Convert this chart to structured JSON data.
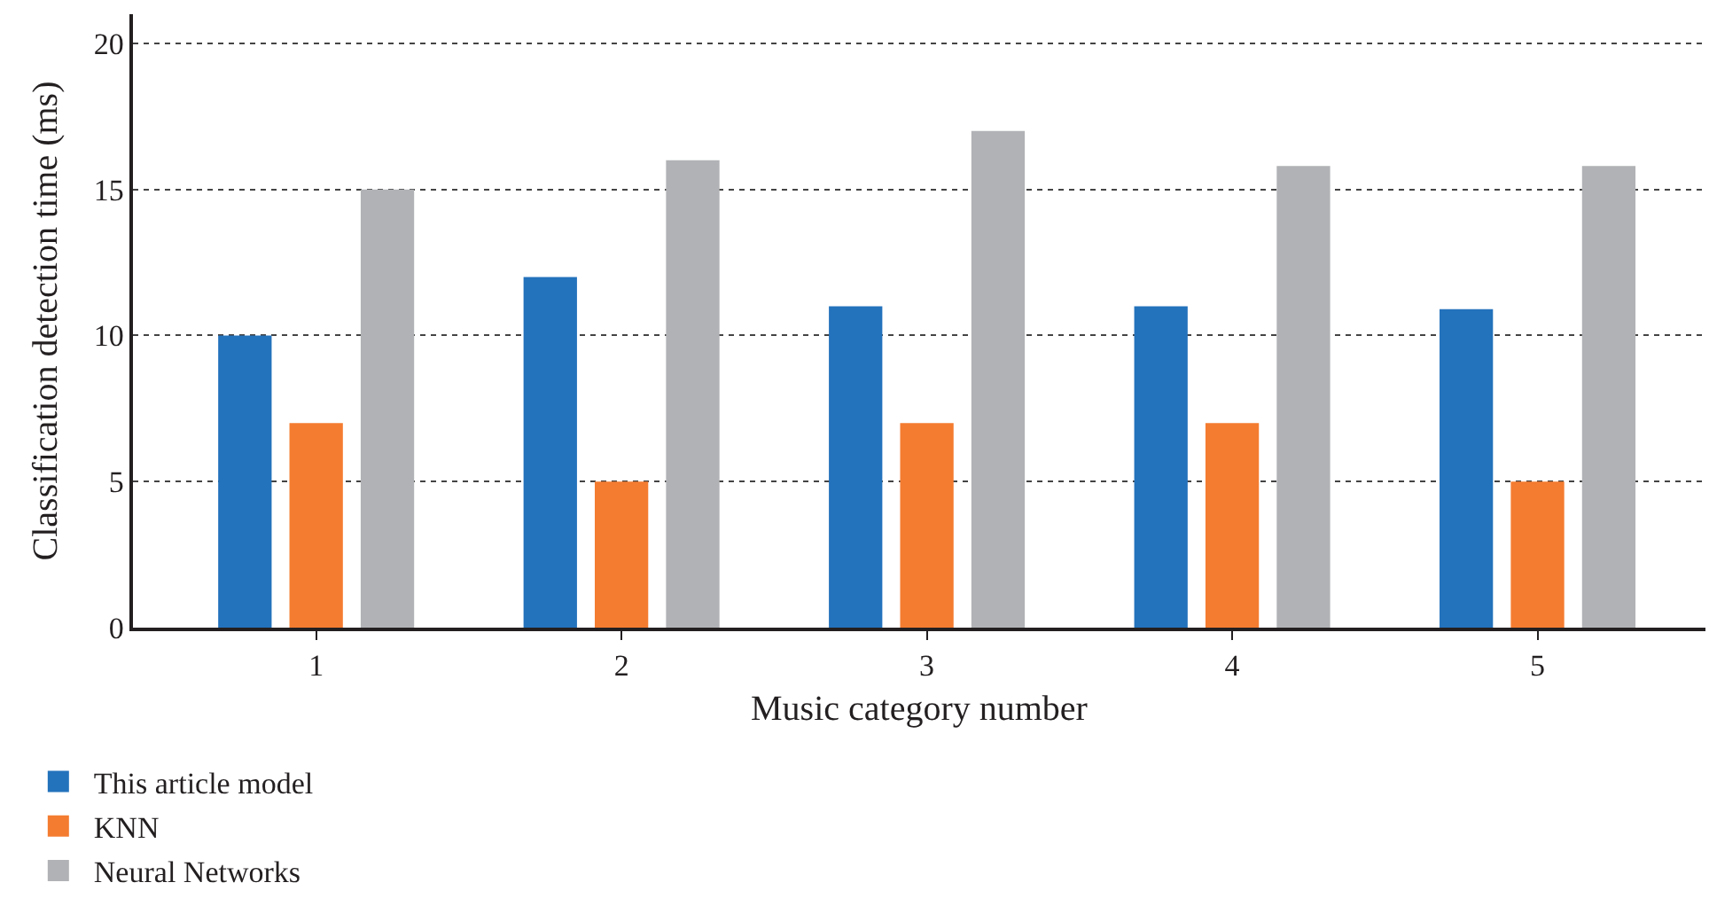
{
  "chart_data": {
    "type": "bar",
    "xlabel": "Music category number",
    "ylabel": "Classification detection time (ms)",
    "categories": [
      "1",
      "2",
      "3",
      "4",
      "5"
    ],
    "series": [
      {
        "name": "This article model",
        "color": "#2372bc",
        "values": [
          10,
          12,
          11,
          11,
          10.9
        ]
      },
      {
        "name": "KNN",
        "color": "#f47c30",
        "values": [
          7,
          5,
          7,
          7,
          5
        ]
      },
      {
        "name": "Neural Networks",
        "color": "#b1b2b5",
        "values": [
          15,
          16,
          17,
          15.8,
          15.8
        ]
      }
    ],
    "ylim": [
      0,
      21
    ],
    "yticks": [
      0,
      5,
      10,
      15,
      20
    ],
    "grid": "y",
    "legend": "bottom left"
  }
}
